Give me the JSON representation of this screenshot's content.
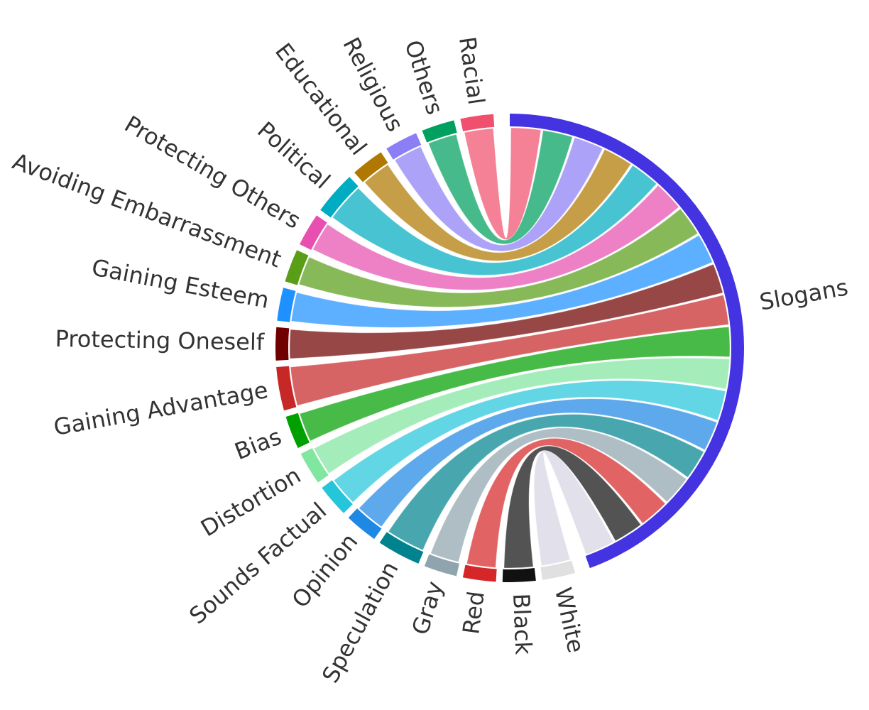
{
  "chart_data": {
    "type": "chord",
    "title": "",
    "hub": {
      "name": "Slogans",
      "color": "#4433e0"
    },
    "groups": [
      {
        "name": "White",
        "color": "#e0e0e0",
        "value": 0.047
      },
      {
        "name": "Black",
        "color": "#111111",
        "value": 0.047
      },
      {
        "name": "Red",
        "color": "#d62728",
        "value": 0.047
      },
      {
        "name": "Gray",
        "color": "#90a4ae",
        "value": 0.047
      },
      {
        "name": "Speculation",
        "color": "#00838f",
        "value": 0.062
      },
      {
        "name": "Opinion",
        "color": "#1e88e5",
        "value": 0.047
      },
      {
        "name": "Sounds Factual",
        "color": "#26c6da",
        "value": 0.047
      },
      {
        "name": "Distortion",
        "color": "#81e6a0",
        "value": 0.047
      },
      {
        "name": "Bias",
        "color": "#00a000",
        "value": 0.047
      },
      {
        "name": "Gaining Advantage",
        "color": "#c62828",
        "value": 0.062
      },
      {
        "name": "Protecting Oneself",
        "color": "#700000",
        "value": 0.047
      },
      {
        "name": "Gaining Esteem",
        "color": "#1e90ff",
        "value": 0.047
      },
      {
        "name": "Avoiding Embarrassment",
        "color": "#5a9e18",
        "value": 0.047
      },
      {
        "name": "Protecting Others",
        "color": "#e84fb0",
        "value": 0.047
      },
      {
        "name": "Political",
        "color": "#00acc1",
        "value": 0.062
      },
      {
        "name": "Educational",
        "color": "#b07800",
        "value": 0.047
      },
      {
        "name": "Religious",
        "color": "#8c7ef5",
        "value": 0.047
      },
      {
        "name": "Others",
        "color": "#00a060",
        "value": 0.047
      },
      {
        "name": "Racial",
        "color": "#f0506e",
        "value": 0.047
      }
    ]
  }
}
